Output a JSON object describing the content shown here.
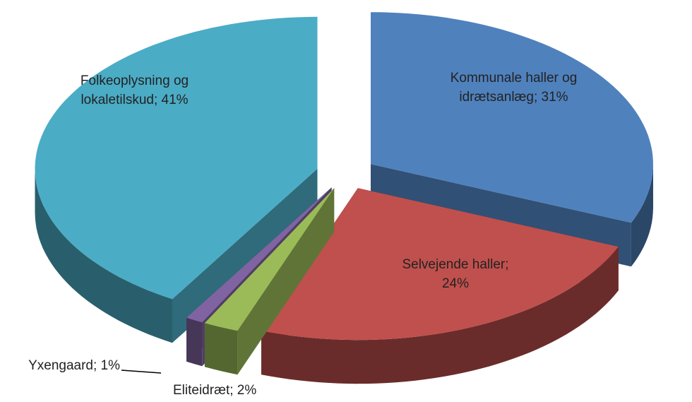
{
  "chart_data": {
    "type": "pie",
    "values": [
      31,
      24,
      2,
      1,
      41
    ],
    "value_labels": [
      "Kommunale haller og idrætsanlæg; 31%",
      "Selvejende haller; 24%",
      "Eliteidræt; 2%",
      "Yxengaard; 1%",
      "Folkeoplysning og lokaletilskud; 41%"
    ],
    "colors": [
      "#4f81bd",
      "#c0504d",
      "#9bbb59",
      "#8064a2",
      "#4bacc6"
    ],
    "exploded": true,
    "three_d": true
  }
}
